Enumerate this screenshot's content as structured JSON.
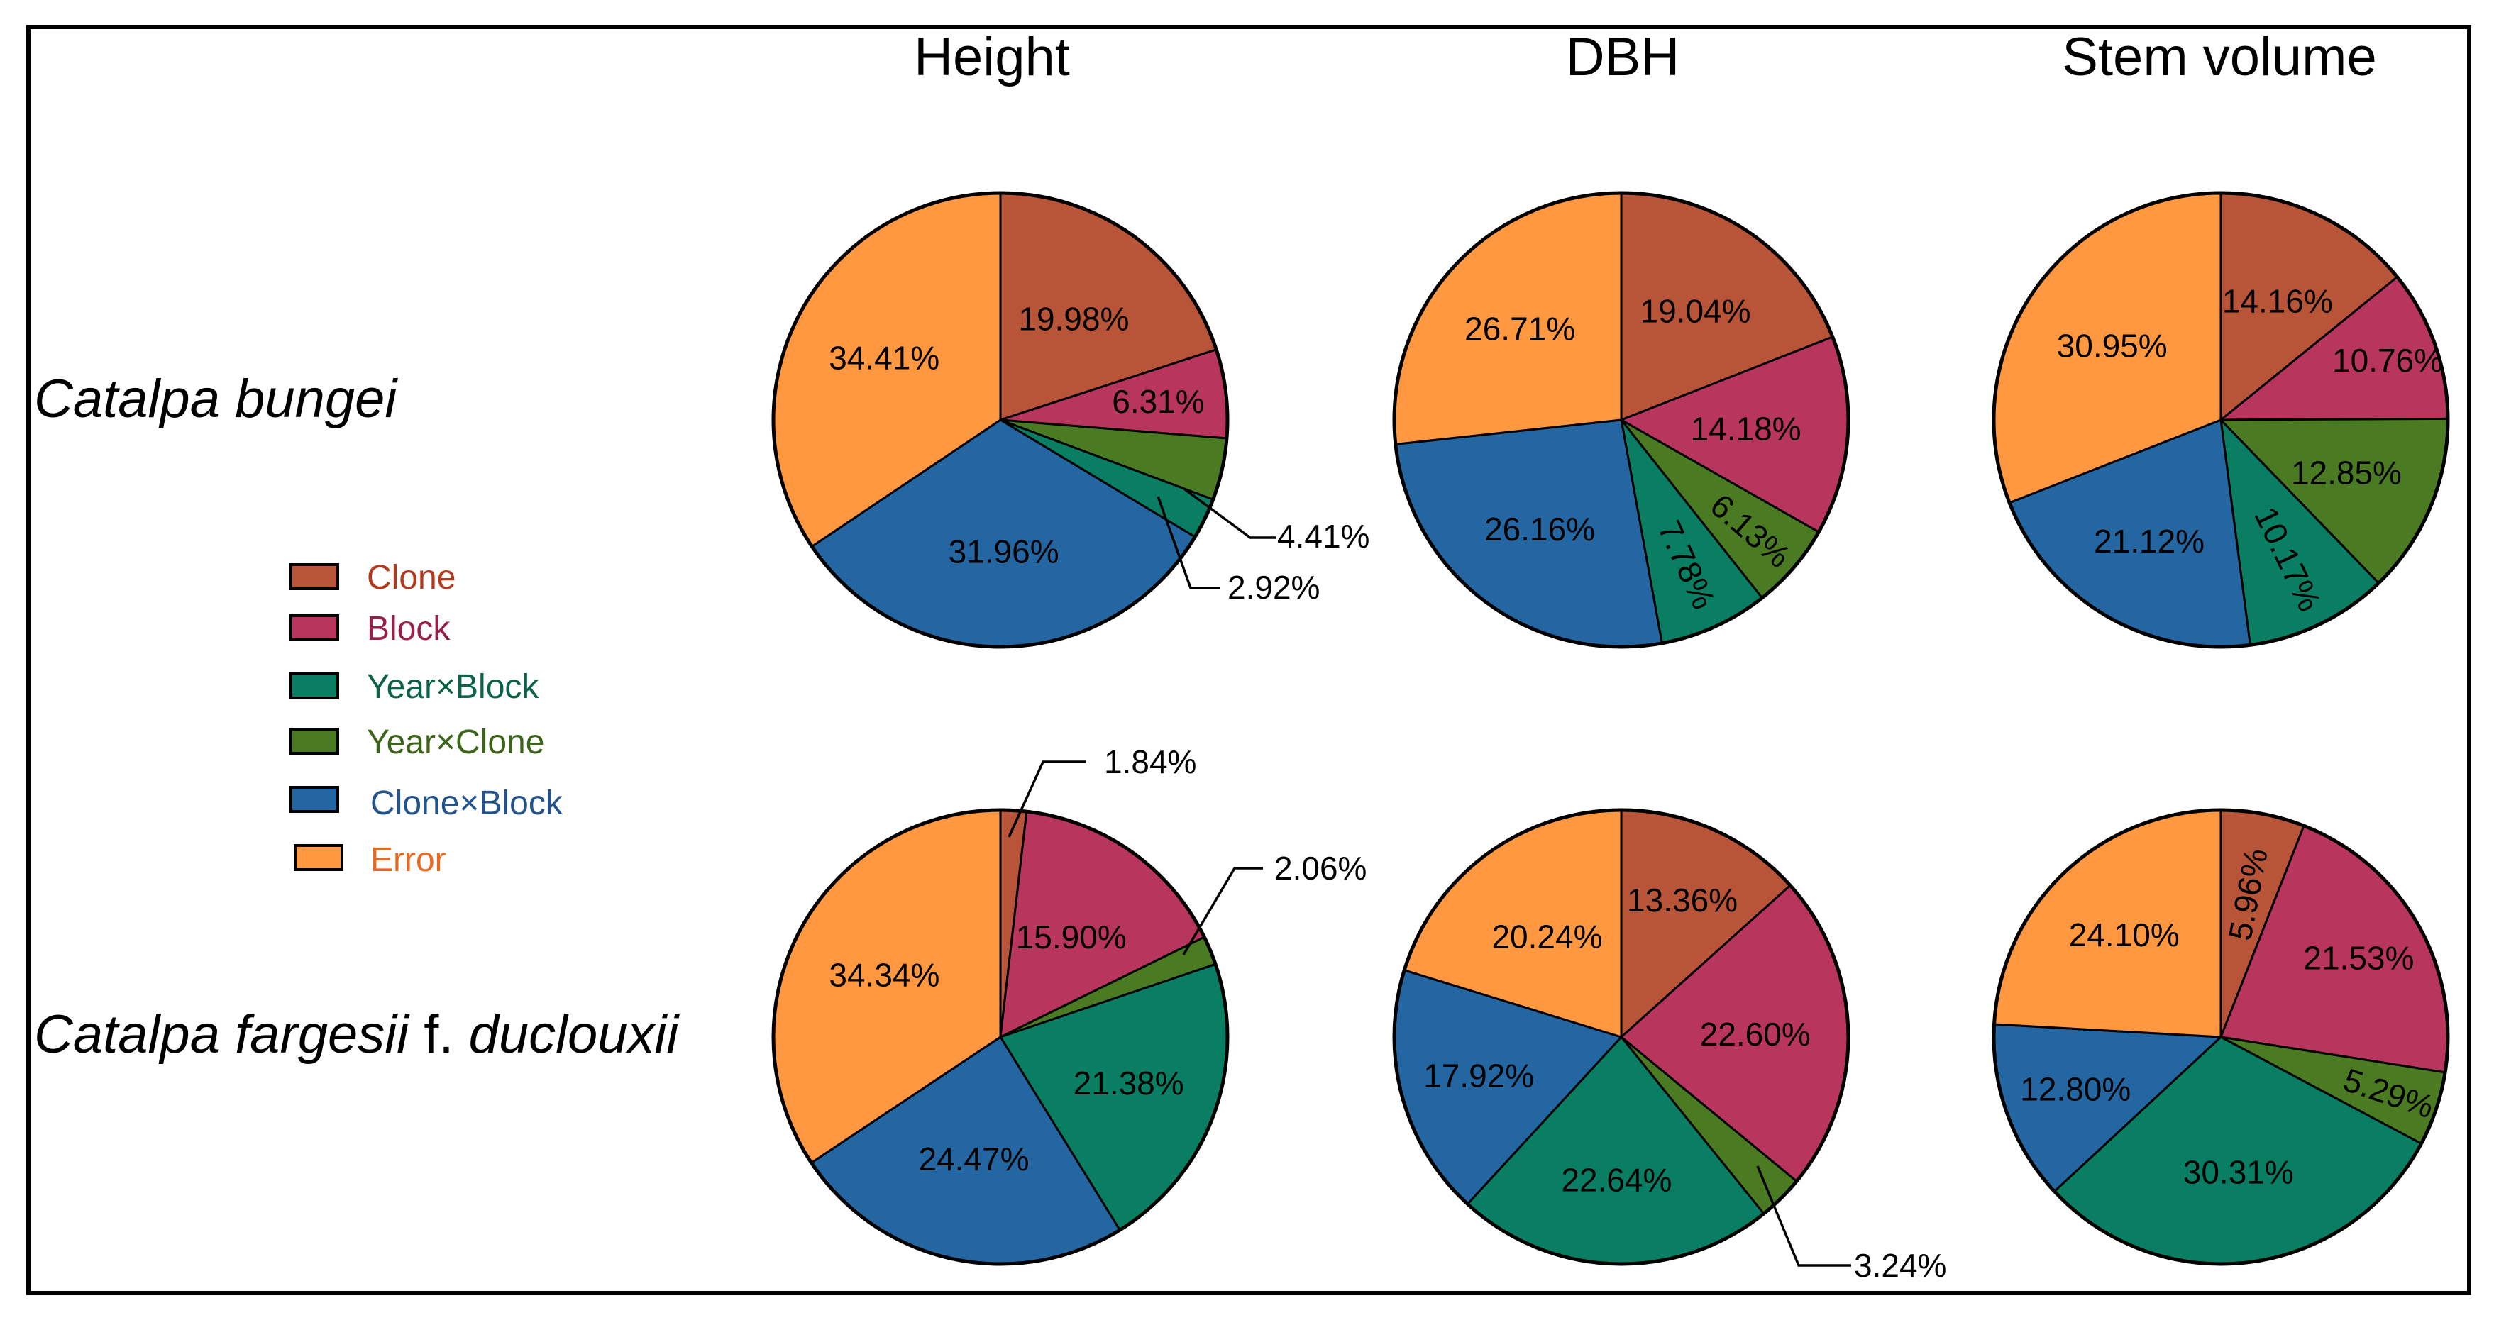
{
  "columns": [
    "Height",
    "DBH",
    "Stem volume"
  ],
  "rows": {
    "bungei": {
      "label": "Catalpa bungei"
    },
    "fargesii": {
      "label_species": "Catalpa fargesii",
      "label_rank": "f.",
      "label_variety": "duclouxii"
    }
  },
  "legend": [
    {
      "key": "clone",
      "label": "Clone",
      "color": "#B85438",
      "text_color": "#B03A1E"
    },
    {
      "key": "block",
      "label": "Block",
      "color": "#B8365E",
      "text_color": "#96204A"
    },
    {
      "key": "year_block",
      "label": "Year×Block",
      "color": "#0A7E62",
      "text_color": "#0A6248"
    },
    {
      "key": "year_clone",
      "label": "Year×Clone",
      "color": "#4A7B22",
      "text_color": "#3B6418"
    },
    {
      "key": "clone_block",
      "label": "Clone×Block",
      "color": "#2466A2",
      "text_color": "#23538A"
    },
    {
      "key": "error",
      "label": "Error",
      "color": "#FF9840",
      "text_color": "#E86A22"
    }
  ],
  "chart_data": [
    {
      "type": "pie",
      "title": "Height",
      "row": "Catalpa bungei",
      "slices": [
        {
          "key": "clone",
          "value": 19.98,
          "label": "19.98%"
        },
        {
          "key": "block",
          "value": 6.31,
          "label": "6.31%"
        },
        {
          "key": "year_clone",
          "value": 4.41,
          "label": "4.41%"
        },
        {
          "key": "year_block",
          "value": 2.92,
          "label": "2.92%"
        },
        {
          "key": "clone_block",
          "value": 31.96,
          "label": "31.96%"
        },
        {
          "key": "error",
          "value": 34.41,
          "label": "34.41%"
        }
      ]
    },
    {
      "type": "pie",
      "title": "DBH",
      "row": "Catalpa bungei",
      "slices": [
        {
          "key": "clone",
          "value": 19.04,
          "label": "19.04%"
        },
        {
          "key": "block",
          "value": 14.18,
          "label": "14.18%"
        },
        {
          "key": "year_clone",
          "value": 6.13,
          "label": "6.13%"
        },
        {
          "key": "year_block",
          "value": 7.78,
          "label": "7.78%"
        },
        {
          "key": "clone_block",
          "value": 26.16,
          "label": "26.16%"
        },
        {
          "key": "error",
          "value": 26.71,
          "label": "26.71%"
        }
      ]
    },
    {
      "type": "pie",
      "title": "Stem volume",
      "row": "Catalpa bungei",
      "slices": [
        {
          "key": "clone",
          "value": 14.16,
          "label": "14.16%"
        },
        {
          "key": "block",
          "value": 10.76,
          "label": "10.76%"
        },
        {
          "key": "year_clone",
          "value": 12.85,
          "label": "12.85%"
        },
        {
          "key": "year_block",
          "value": 10.17,
          "label": "10.17%"
        },
        {
          "key": "clone_block",
          "value": 21.12,
          "label": "21.12%"
        },
        {
          "key": "error",
          "value": 30.95,
          "label": "30.95%"
        }
      ]
    },
    {
      "type": "pie",
      "title": "Height",
      "row": "Catalpa fargesii f. duclouxii",
      "slices": [
        {
          "key": "clone",
          "value": 1.84,
          "label": "1.84%"
        },
        {
          "key": "block",
          "value": 15.9,
          "label": "15.90%"
        },
        {
          "key": "year_clone",
          "value": 2.06,
          "label": "2.06%"
        },
        {
          "key": "year_block",
          "value": 21.38,
          "label": "21.38%"
        },
        {
          "key": "clone_block",
          "value": 24.47,
          "label": "24.47%"
        },
        {
          "key": "error",
          "value": 34.34,
          "label": "34.34%"
        }
      ]
    },
    {
      "type": "pie",
      "title": "DBH",
      "row": "Catalpa fargesii f. duclouxii",
      "slices": [
        {
          "key": "clone",
          "value": 13.36,
          "label": "13.36%"
        },
        {
          "key": "block",
          "value": 22.6,
          "label": "22.60%"
        },
        {
          "key": "year_clone",
          "value": 3.24,
          "label": "3.24%"
        },
        {
          "key": "year_block",
          "value": 22.64,
          "label": "22.64%"
        },
        {
          "key": "clone_block",
          "value": 17.92,
          "label": "17.92%"
        },
        {
          "key": "error",
          "value": 20.24,
          "label": "20.24%"
        }
      ]
    },
    {
      "type": "pie",
      "title": "Stem volume",
      "row": "Catalpa fargesii f. duclouxii",
      "slices": [
        {
          "key": "clone",
          "value": 5.96,
          "label": "5.96%"
        },
        {
          "key": "block",
          "value": 21.53,
          "label": "21.53%"
        },
        {
          "key": "year_clone",
          "value": 5.29,
          "label": "5.29%"
        },
        {
          "key": "year_block",
          "value": 30.31,
          "label": "30.31%"
        },
        {
          "key": "clone_block",
          "value": 12.8,
          "label": "12.80%"
        },
        {
          "key": "error",
          "value": 24.1,
          "label": "24.10%"
        }
      ]
    }
  ]
}
